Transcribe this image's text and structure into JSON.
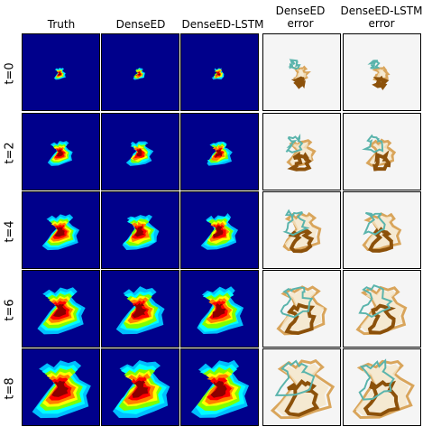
{
  "columns": [
    {
      "id": "truth",
      "title": "Truth",
      "kind": "field"
    },
    {
      "id": "dense_ed",
      "title": "DenseED",
      "kind": "field"
    },
    {
      "id": "dense_ed_lstm",
      "title": "DenseED-LSTM",
      "kind": "field"
    },
    {
      "id": "dense_ed_error",
      "title": "DenseED\nerror",
      "kind": "error"
    },
    {
      "id": "dense_ed_lstm_error",
      "title": "DenseED-LSTM\nerror",
      "kind": "error"
    }
  ],
  "rows": [
    {
      "label": "t=0",
      "scale": 0.18
    },
    {
      "label": "t=2",
      "scale": 0.38
    },
    {
      "label": "t=4",
      "scale": 0.55
    },
    {
      "label": "t=6",
      "scale": 0.72
    },
    {
      "label": "t=8",
      "scale": 0.88
    }
  ],
  "colors": {
    "field_background": "#00008b",
    "field_ramp": [
      "#0000ff",
      "#00bfff",
      "#00ffff",
      "#7fff00",
      "#ffff00",
      "#ff7f00",
      "#ff0000",
      "#8b0000"
    ],
    "error_background": "#f5f5f5",
    "error_positive": [
      "#f5e6c8",
      "#d9a55b",
      "#8c510a",
      "#543005"
    ],
    "error_negative": [
      "#c7eae5",
      "#5ab4ac",
      "#01665e"
    ]
  }
}
